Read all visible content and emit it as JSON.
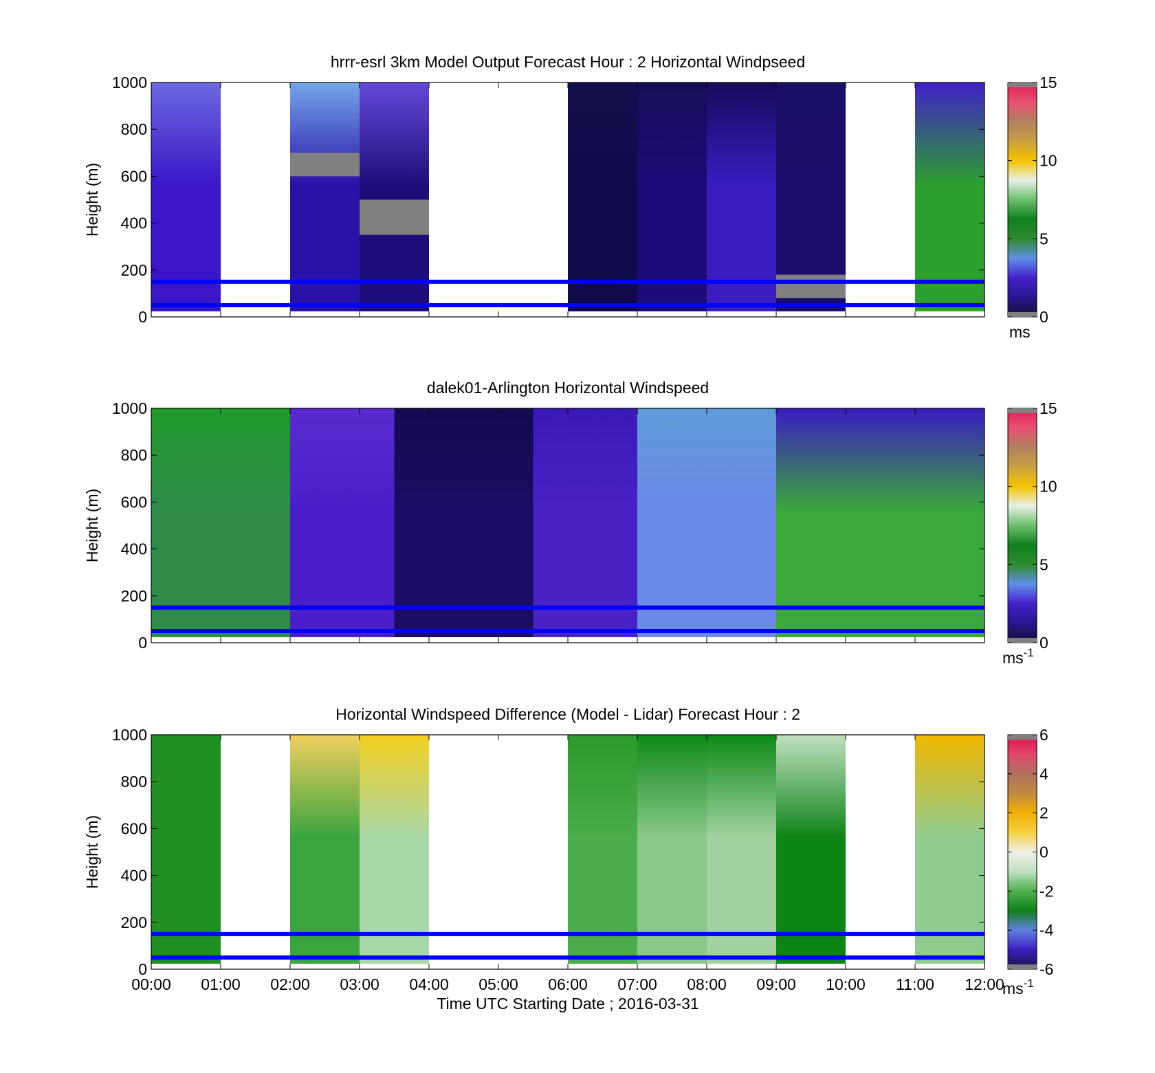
{
  "x_ticks": [
    "00:00",
    "01:00",
    "02:00",
    "03:00",
    "04:00",
    "05:00",
    "06:00",
    "07:00",
    "08:00",
    "09:00",
    "10:00",
    "11:00",
    "12:00"
  ],
  "x_label": "Time UTC  Starting Date ; 2016-03-31",
  "chart_data": [
    {
      "type": "heatmap",
      "title": "hrrr-esrl 3km Model Output   Forecast Hour : 2 Horizontal Windpseed",
      "ylabel": "Height (m)",
      "ylim": [
        0,
        1000
      ],
      "y_ticks": [
        "0",
        "200",
        "400",
        "600",
        "800",
        "1000"
      ],
      "xlim": [
        0,
        12
      ],
      "colorbar": {
        "ticks": [
          "0",
          "5",
          "10",
          "15"
        ],
        "min": 0,
        "max": 15,
        "units": "ms",
        "units_sup": ""
      },
      "reference_lines": {
        "heights_m": [
          50,
          150
        ],
        "color": "#0000ff"
      },
      "columns": [
        {
          "x_start": 0,
          "x_end": 1,
          "color": "#3a16c8",
          "top_color": "#6d6ae0"
        },
        {
          "x_start": 2,
          "x_end": 3,
          "color": "#2a12a8",
          "top_color": "#73a8e8",
          "gap": {
            "y_start": 600,
            "y_end": 700
          }
        },
        {
          "x_start": 3,
          "x_end": 4,
          "color": "#1e0e7a",
          "top_color": "#6448d8",
          "gap": {
            "y_start": 350,
            "y_end": 500
          }
        },
        {
          "x_start": 6,
          "x_end": 7,
          "color": "#0f0a4a",
          "top_color": "#14104e"
        },
        {
          "x_start": 7,
          "x_end": 8,
          "color": "#1c0c78",
          "top_color": "#150d58"
        },
        {
          "x_start": 8,
          "x_end": 9,
          "color": "#3a1cc0",
          "top_color": "#160c5c"
        },
        {
          "x_start": 9,
          "x_end": 10,
          "color": "#1b0e6a",
          "top_color": "#1a0f66",
          "gap": {
            "y_start": 80,
            "y_end": 180
          }
        },
        {
          "x_start": 11,
          "x_end": 12,
          "color": "#2ca02c",
          "top_color": "#4020c8"
        }
      ]
    },
    {
      "type": "heatmap",
      "title": "dalek01-Arlington  Horizontal Windspeed",
      "ylabel": "Height (m)",
      "ylim": [
        0,
        1000
      ],
      "y_ticks": [
        "0",
        "200",
        "400",
        "600",
        "800",
        "1000"
      ],
      "xlim": [
        0,
        12
      ],
      "colorbar": {
        "ticks": [
          "0",
          "5",
          "10",
          "15"
        ],
        "min": 0,
        "max": 15,
        "units": "ms",
        "units_sup": "-1"
      },
      "reference_lines": {
        "heights_m": [
          50,
          150
        ],
        "color": "#0000ff"
      },
      "columns": [
        {
          "x_start": 0,
          "x_end": 2,
          "color": "#2e8b4a",
          "top_color": "#1f9a2a"
        },
        {
          "x_start": 2,
          "x_end": 3.5,
          "color": "#4a1ec8",
          "top_color": "#5a2ad0"
        },
        {
          "x_start": 3.5,
          "x_end": 5.5,
          "color": "#1a0c64",
          "top_color": "#140a52"
        },
        {
          "x_start": 5.5,
          "x_end": 7,
          "color": "#4822c4",
          "top_color": "#3a18b8"
        },
        {
          "x_start": 7,
          "x_end": 9,
          "color": "#6a8ae8",
          "top_color": "#5e9ad8"
        },
        {
          "x_start": 9,
          "x_end": 12,
          "color": "#3aa83a",
          "top_color": "#3a1cc0"
        }
      ]
    },
    {
      "type": "heatmap",
      "title": "Horizontal Windspeed Difference (Model - Lidar) Forecast Hour : 2",
      "ylabel": "Height (m)",
      "ylim": [
        0,
        1000
      ],
      "y_ticks": [
        "0",
        "200",
        "400",
        "600",
        "800",
        "1000"
      ],
      "xlim": [
        0,
        12
      ],
      "colorbar": {
        "ticks": [
          "-6",
          "-4",
          "-2",
          "0",
          "2",
          "4",
          "6"
        ],
        "min": -6,
        "max": 6,
        "units": "ms",
        "units_sup": "-1"
      },
      "reference_lines": {
        "heights_m": [
          50,
          150
        ],
        "color": "#0000ff"
      },
      "columns": [
        {
          "x_start": 0,
          "x_end": 1,
          "color": "#1f8f24",
          "top_color": "#1f8f24"
        },
        {
          "x_start": 2,
          "x_end": 3,
          "color": "#3aa43e",
          "top_color": "#f0d060"
        },
        {
          "x_start": 3,
          "x_end": 4,
          "color": "#a8d8a8",
          "top_color": "#f4d020"
        },
        {
          "x_start": 6,
          "x_end": 7,
          "color": "#4aac4a",
          "top_color": "#2c9a2c"
        },
        {
          "x_start": 7,
          "x_end": 8,
          "color": "#8ac88a",
          "top_color": "#0e8a18"
        },
        {
          "x_start": 8,
          "x_end": 9,
          "color": "#a2d2a2",
          "top_color": "#0c8a16"
        },
        {
          "x_start": 9,
          "x_end": 10,
          "color": "#0c8416",
          "top_color": "#c0e0c0"
        },
        {
          "x_start": 11,
          "x_end": 12,
          "color": "#90cc90",
          "top_color": "#f0b800"
        }
      ]
    }
  ],
  "colormaps": {
    "speed": [
      "#191033",
      "#2a1590",
      "#4422cc",
      "#5f8fe6",
      "#2e8b2e",
      "#10801e",
      "#6cbf6c",
      "#e8f0e8",
      "#f5c400",
      "#c8a040",
      "#b08060",
      "#e85070",
      "#e0205a"
    ],
    "diff": [
      "#1a1040",
      "#3a20c0",
      "#6080e0",
      "#108018",
      "#50b050",
      "#c0e0c0",
      "#f0f0e8",
      "#f6d040",
      "#f0b000",
      "#c08a40",
      "#b07060",
      "#e04868",
      "#e01050"
    ]
  }
}
